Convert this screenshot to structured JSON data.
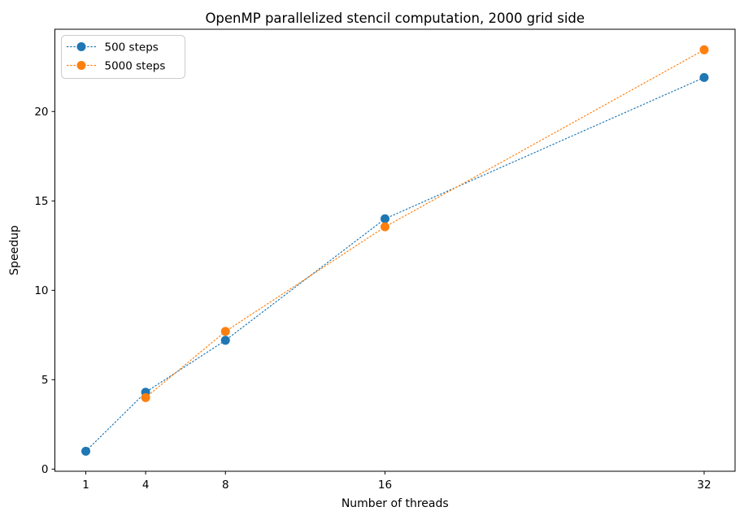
{
  "figure": {
    "background": "#ffffff",
    "spine_color": "#000000",
    "text_color": "#000000"
  },
  "chart_data": {
    "type": "line",
    "title": "OpenMP parallelized stencil computation, 2000 grid side",
    "xlabel": "Number of threads",
    "ylabel": "Speedup",
    "xlim": [
      -0.55,
      33.55
    ],
    "ylim": [
      -0.12,
      24.6
    ],
    "xticks": [
      1,
      4,
      8,
      16,
      32
    ],
    "yticks": [
      0,
      5,
      10,
      15,
      20
    ],
    "grid": false,
    "line_style": "dotted",
    "marker": "circle",
    "legend_position": "upper-left",
    "series": [
      {
        "name": "500 steps",
        "color": "#1f77b4",
        "x": [
          1,
          4,
          8,
          16,
          32
        ],
        "y": [
          1.0,
          4.3,
          7.2,
          14.0,
          21.9
        ]
      },
      {
        "name": "5000 steps",
        "color": "#ff7f0e",
        "x": [
          4,
          8,
          16,
          32
        ],
        "y": [
          4.0,
          7.7,
          13.55,
          23.45
        ]
      }
    ]
  }
}
